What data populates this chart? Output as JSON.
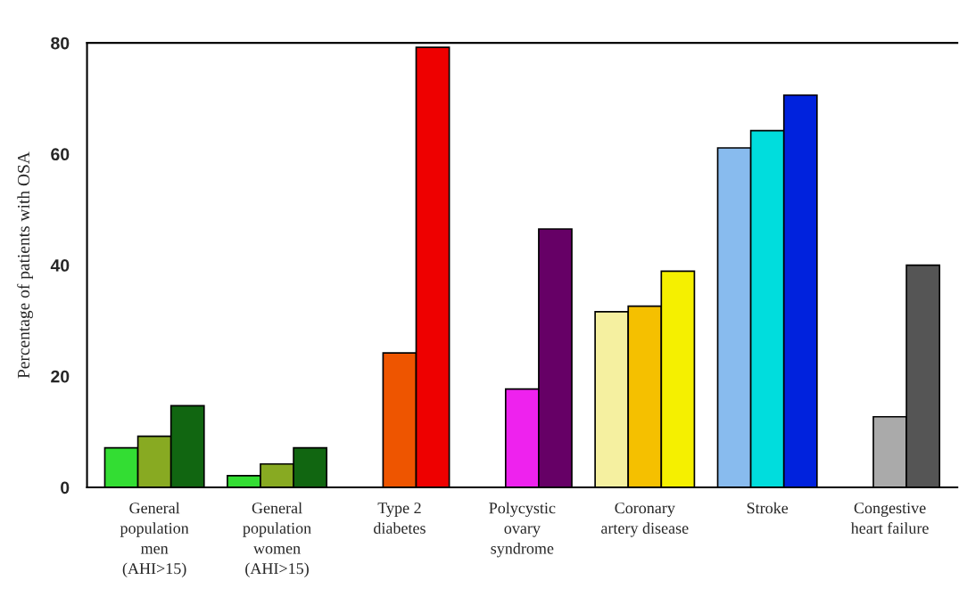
{
  "chart_data": {
    "type": "bar",
    "ylabel": "Percentage of patients with OSA",
    "categories": [
      "General\npopulation\nmen\n(AHI>15)",
      "General\npopulation\nwomen\n(AHI>15)",
      "Type 2\ndiabetes",
      "Polycystic\novary\nsyndrome",
      "Coronary\nartery disease",
      "Stroke",
      "Congestive\nheart failure"
    ],
    "series": [
      {
        "values": [
          7.1,
          2.1,
          null,
          null,
          31.6,
          61.1,
          null
        ],
        "colors": [
          "#33dd33",
          "#33dd33",
          null,
          null,
          "#f5f0a0",
          "#88bbee",
          null
        ]
      },
      {
        "values": [
          9.2,
          4.2,
          24.2,
          17.7,
          32.6,
          64.2,
          12.7
        ],
        "colors": [
          "#88aa22",
          "#88aa22",
          "#ee5500",
          "#ee22ee",
          "#f5c000",
          "#00dddd",
          "#aaaaaa"
        ]
      },
      {
        "values": [
          14.7,
          7.1,
          79.2,
          46.5,
          38.9,
          70.6,
          40.0
        ],
        "colors": [
          "#116611",
          "#116611",
          "#ee0000",
          "#660066",
          "#f5f000",
          "#0022dd",
          "#555555"
        ]
      }
    ],
    "ylim": [
      0,
      80
    ],
    "yticks": [
      0,
      20,
      40,
      60,
      80
    ],
    "grid": false,
    "legend": false
  }
}
